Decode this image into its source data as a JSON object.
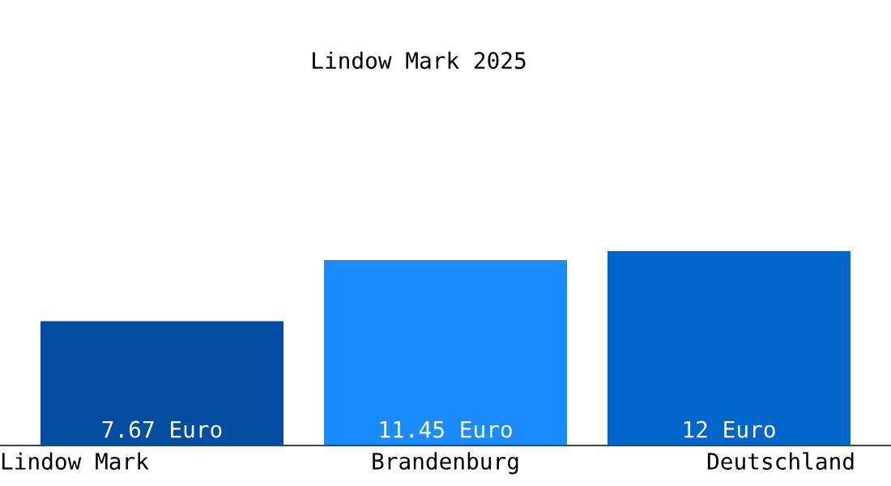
{
  "chart_data": {
    "type": "bar",
    "title": "Lindow Mark 2025",
    "categories": [
      "Lindow Mark",
      "Brandenburg",
      "Deutschland"
    ],
    "values": [
      7.67,
      11.45,
      12
    ],
    "value_labels": [
      "7.67 Euro",
      "11.45 Euro",
      "12 Euro"
    ],
    "colors": [
      "#034ea2",
      "#1a8cff",
      "#0066cc"
    ],
    "tick_labels": "x",
    "grid": false,
    "legend": false
  }
}
